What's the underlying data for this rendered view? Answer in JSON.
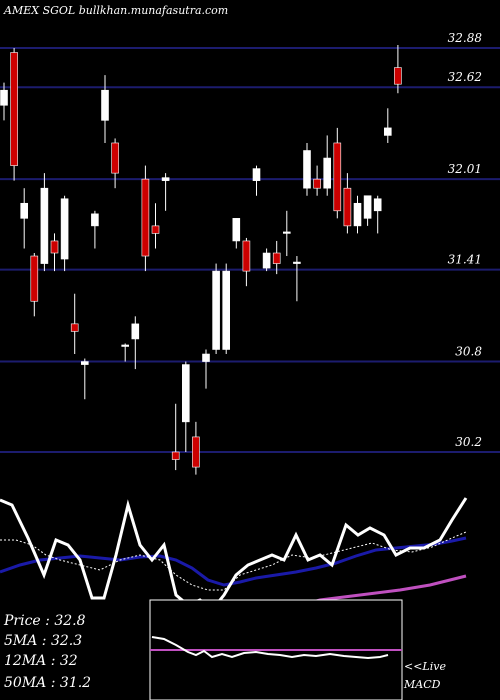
{
  "header": {
    "symbol_text": "AMEX SGOL bullkhan.munafasutra.com"
  },
  "colors": {
    "background": "#000000",
    "bull": "#ffffff",
    "bear": "#cc0000",
    "grid": "#1c1c6e",
    "ma_fast": "#ffffff",
    "ma_mid": "#1a1aa8",
    "ma_slow": "#c050c0",
    "ma_dotted": "#ffffff",
    "macd_line": "#ffffff",
    "macd_signal": "#c050c0"
  },
  "stats": {
    "price": "Price   : 32.8",
    "ma5": "5MA : 32.3",
    "ma12": "12MA : 32",
    "ma50": "50MA : 31.2"
  },
  "macd": {
    "live": "<<Live",
    "label": "MACD"
  },
  "chart_data": {
    "type": "candlestick",
    "ylim": [
      29.8,
      33.1
    ],
    "price_levels": [
      {
        "label": "32.88",
        "value": 32.88
      },
      {
        "label": "32.62",
        "value": 32.62
      },
      {
        "label": "32.01",
        "value": 32.01
      },
      {
        "label": "31.41",
        "value": 31.41
      },
      {
        "label": "30.8",
        "value": 30.8
      },
      {
        "label": "30.2",
        "value": 30.2
      }
    ],
    "candles": [
      {
        "o": 32.5,
        "h": 32.65,
        "l": 32.4,
        "c": 32.6
      },
      {
        "o": 32.85,
        "h": 32.88,
        "l": 32.0,
        "c": 32.1
      },
      {
        "o": 31.75,
        "h": 31.95,
        "l": 31.55,
        "c": 31.85
      },
      {
        "o": 31.5,
        "h": 31.52,
        "l": 31.1,
        "c": 31.2
      },
      {
        "o": 31.45,
        "h": 32.05,
        "l": 31.4,
        "c": 31.95
      },
      {
        "o": 31.6,
        "h": 31.65,
        "l": 31.4,
        "c": 31.52
      },
      {
        "o": 31.48,
        "h": 31.9,
        "l": 31.4,
        "c": 31.88
      },
      {
        "o": 31.05,
        "h": 31.25,
        "l": 30.85,
        "c": 31.0
      },
      {
        "o": 30.78,
        "h": 30.82,
        "l": 30.55,
        "c": 30.8
      },
      {
        "o": 31.7,
        "h": 31.8,
        "l": 31.55,
        "c": 31.78
      },
      {
        "o": 32.4,
        "h": 32.7,
        "l": 32.25,
        "c": 32.6
      },
      {
        "o": 32.25,
        "h": 32.28,
        "l": 31.95,
        "c": 32.05
      },
      {
        "o": 30.9,
        "h": 30.92,
        "l": 30.8,
        "c": 30.91
      },
      {
        "o": 30.95,
        "h": 31.1,
        "l": 30.75,
        "c": 31.05
      },
      {
        "o": 32.01,
        "h": 32.1,
        "l": 31.4,
        "c": 31.5
      },
      {
        "o": 31.7,
        "h": 31.85,
        "l": 31.55,
        "c": 31.65
      },
      {
        "o": 32.0,
        "h": 32.05,
        "l": 31.8,
        "c": 32.02
      },
      {
        "o": 30.2,
        "h": 30.52,
        "l": 30.08,
        "c": 30.15
      },
      {
        "o": 30.4,
        "h": 30.8,
        "l": 30.2,
        "c": 30.78
      },
      {
        "o": 30.3,
        "h": 30.4,
        "l": 30.05,
        "c": 30.1
      },
      {
        "o": 30.8,
        "h": 30.88,
        "l": 30.62,
        "c": 30.85
      },
      {
        "o": 30.88,
        "h": 31.45,
        "l": 30.85,
        "c": 31.4
      },
      {
        "o": 30.88,
        "h": 31.45,
        "l": 30.85,
        "c": 31.4
      },
      {
        "o": 31.6,
        "h": 31.75,
        "l": 31.55,
        "c": 31.75
      },
      {
        "o": 31.6,
        "h": 31.62,
        "l": 31.3,
        "c": 31.4
      },
      {
        "o": 32.0,
        "h": 32.1,
        "l": 31.9,
        "c": 32.08
      },
      {
        "o": 31.42,
        "h": 31.55,
        "l": 31.4,
        "c": 31.52
      },
      {
        "o": 31.52,
        "h": 31.6,
        "l": 31.38,
        "c": 31.45
      },
      {
        "o": 31.65,
        "h": 31.8,
        "l": 31.5,
        "c": 31.66
      },
      {
        "o": 31.45,
        "h": 31.5,
        "l": 31.2,
        "c": 31.46
      },
      {
        "o": 31.95,
        "h": 32.25,
        "l": 31.9,
        "c": 32.2
      },
      {
        "o": 32.01,
        "h": 32.1,
        "l": 31.9,
        "c": 31.95
      },
      {
        "o": 31.95,
        "h": 32.3,
        "l": 31.9,
        "c": 32.15
      },
      {
        "o": 32.25,
        "h": 32.35,
        "l": 31.75,
        "c": 31.8
      },
      {
        "o": 31.95,
        "h": 32.05,
        "l": 31.65,
        "c": 31.7
      },
      {
        "o": 31.7,
        "h": 31.9,
        "l": 31.65,
        "c": 31.85
      },
      {
        "o": 31.75,
        "h": 31.9,
        "l": 31.7,
        "c": 31.9
      },
      {
        "o": 31.8,
        "h": 31.9,
        "l": 31.65,
        "c": 31.88
      },
      {
        "o": 32.3,
        "h": 32.48,
        "l": 32.25,
        "c": 32.35
      },
      {
        "o": 32.75,
        "h": 32.9,
        "l": 32.58,
        "c": 32.64
      }
    ]
  }
}
